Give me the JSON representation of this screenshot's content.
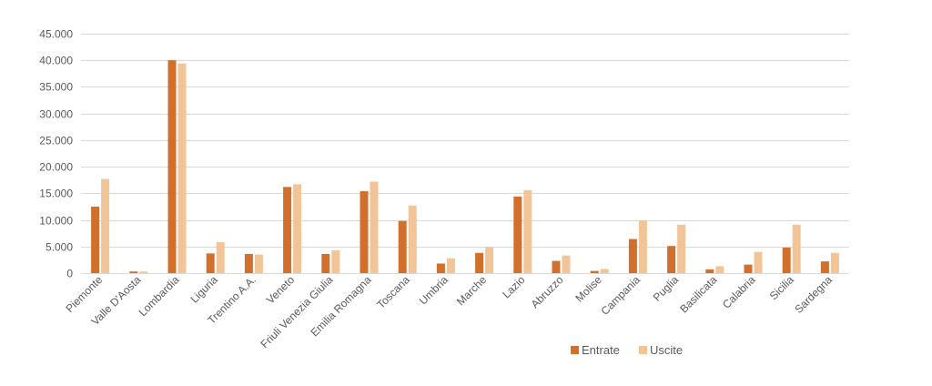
{
  "chart_data": {
    "type": "bar",
    "categories": [
      "Piemonte",
      "Valle D'Aosta",
      "Lombardia",
      "Liguria",
      "Trentino A.A.",
      "Veneto",
      "Friuli Venezia Giulia",
      "Emilia Romagna",
      "Toscana",
      "Umbria",
      "Marche",
      "Lazio",
      "Abruzzo",
      "Molise",
      "Campania",
      "Puglia",
      "Basilicata",
      "Calabria",
      "Sicilia",
      "Sardegna"
    ],
    "series": [
      {
        "name": "Entrate",
        "color": "#D0702C",
        "values": [
          12500,
          300,
          40000,
          3700,
          3600,
          16200,
          3600,
          15400,
          9800,
          1800,
          3800,
          14400,
          2300,
          400,
          6400,
          5100,
          700,
          1600,
          4800,
          2200
        ]
      },
      {
        "name": "Uscite",
        "color": "#F2C598",
        "values": [
          17700,
          300,
          39400,
          5800,
          3500,
          16700,
          4300,
          17200,
          12700,
          2800,
          4900,
          15600,
          3300,
          800,
          9900,
          9100,
          1300,
          4000,
          9100,
          3800
        ]
      }
    ],
    "y_ticks": [
      "0",
      "5.000",
      "10.000",
      "15.000",
      "20.000",
      "25.000",
      "30.000",
      "35.000",
      "40.000",
      "45.000"
    ],
    "ylim": [
      0,
      45000
    ],
    "grid": true,
    "legend_position": "bottom",
    "title": "",
    "xlabel": "",
    "ylabel": ""
  }
}
